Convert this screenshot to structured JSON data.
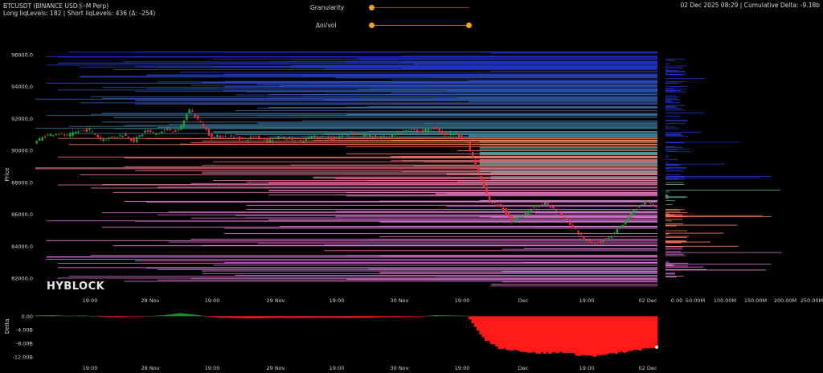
{
  "header": {
    "symbol_line": "BTCUSDT (BINANCE USDⓈ-M Perp)",
    "levels_line": "Long liqLevels: 182 | Short liqLevels: 436 (Δ: -254)",
    "right_line": "02 Dec 2025 08:29 | Cumulative Delta: -9.18b"
  },
  "controls": {
    "granularity_label": "Granularity",
    "granularity_value": 0.0,
    "oivol_label": "Δoi/vol",
    "oivol_value": 1.0
  },
  "watermark": "HYBLOCK",
  "colors": {
    "up_candle": "#1fa33a",
    "down_candle": "#e0323a",
    "delta_positive": "#1e8a2a",
    "delta_negative": "#ff1a1a",
    "short_levels_far": "#2233c8",
    "short_levels_near": "#4a9a8e",
    "long_levels_near": "#ff7a5a",
    "long_levels_far": "#e07ad8",
    "slider_accent": "#f3a21f"
  },
  "chart_data": [
    {
      "type": "line",
      "title": "",
      "ylabel": "Price",
      "ylim": [
        81000,
        97000
      ],
      "y_ticks": [
        96000,
        94000,
        92000,
        90000,
        88000,
        86000,
        84000,
        82000
      ],
      "y_tick_labels": [
        "96000.0",
        "94000.0",
        "92000.0",
        "90000.0",
        "88000.0",
        "86000.0",
        "84000.0",
        "82000.0"
      ],
      "x_tick_labels": [
        "19:00",
        "28 Nov",
        "19:00",
        "29 Nov",
        "19:00",
        "30 Nov",
        "19:00",
        "Dec",
        "19:00",
        "02 Dec"
      ],
      "series": [
        {
          "values": [
            90500,
            90900,
            91100,
            90900,
            91200,
            91300,
            90700,
            90800,
            91000,
            90600,
            91200,
            91050,
            91300,
            91200,
            92600,
            91700,
            90800,
            90900,
            90800,
            90700,
            90900,
            90600,
            90800,
            90750,
            90500,
            90900,
            90850,
            90700,
            91000,
            91050,
            90900,
            90800,
            90850,
            91100,
            91300,
            91200,
            91400,
            91000,
            91100,
            90500,
            88500,
            86800,
            86500,
            85600,
            85900,
            86500,
            86700,
            86200,
            85600,
            84800,
            84200,
            84300,
            84700,
            85400,
            86200,
            86800,
            86500
          ]
        }
      ],
      "volume_profile_x_ticks": [
        "0.00",
        "50.00M",
        "100.00M",
        "150.00M",
        "200.00M",
        "250.00M"
      ],
      "volume_profile_xlim": [
        0,
        260000000
      ]
    },
    {
      "type": "area",
      "ylabel": "Delta",
      "ylim": [
        -13000000000,
        1500000000
      ],
      "y_ticks": [
        0,
        -4000000000,
        -8000000000,
        -12000000000
      ],
      "y_tick_labels": [
        "0.00",
        "-4.00B",
        "-8.00B",
        "-12.00B"
      ],
      "x_tick_labels": [
        "19:00",
        "28 Nov",
        "19:00",
        "29 Nov",
        "19:00",
        "30 Nov",
        "19:00",
        "Dec",
        "19:00",
        "02 Dec"
      ],
      "values": [
        0.2,
        0.3,
        0.1,
        0.2,
        -0.2,
        -0.3,
        -0.1,
        0.0,
        0.3,
        0.9,
        0.4,
        -0.3,
        -0.5,
        -0.6,
        -0.6,
        -0.5,
        -0.55,
        -0.5,
        -0.45,
        -0.5,
        -0.5,
        -0.4,
        -0.3,
        -0.2,
        -0.1,
        0.3,
        0.2,
        0.1,
        -6.5,
        -9.5,
        -10.0,
        -10.8,
        -11.0,
        -10.6,
        -11.5,
        -11.8,
        -11.2,
        -10.5,
        -9.8,
        -9.18
      ]
    }
  ]
}
